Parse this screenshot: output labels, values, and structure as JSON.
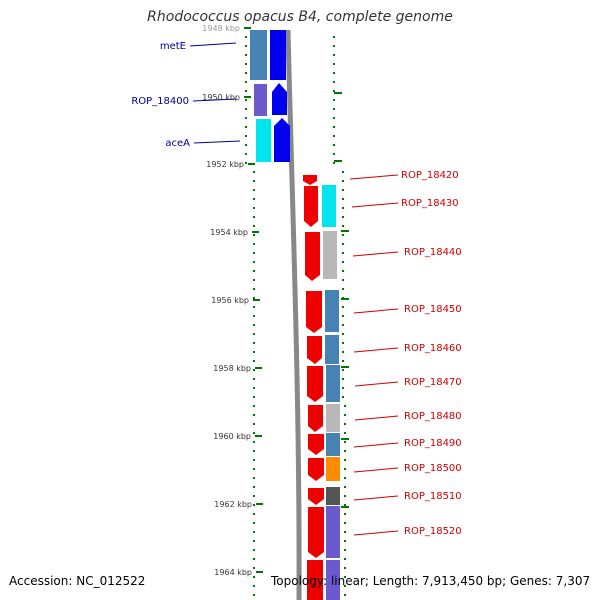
{
  "title": "Rhodococcus opacus B4, complete genome",
  "footer": {
    "accession": "Accession: NC_012522",
    "stats": "Topology: linear; Length: 7,913,450 bp; Genes: 7,307"
  },
  "ruler_labels": [
    "1948 kbp",
    "1950 kbp",
    "1952 kbp",
    "1954 kbp",
    "1956 kbp",
    "1958 kbp",
    "1960 kbp",
    "1962 kbp",
    "1964 kbp"
  ],
  "left_genes": [
    {
      "name": "metE",
      "color": "#000099"
    },
    {
      "name": "ROP_18400",
      "color": "#000099"
    },
    {
      "name": "aceA",
      "color": "#000099"
    }
  ],
  "right_genes": [
    {
      "name": "ROP_18420",
      "color": "#cc0000",
      "category_color": "#00e5ee"
    },
    {
      "name": "ROP_18430",
      "color": "#cc0000",
      "category_color": "#00e5ee"
    },
    {
      "name": "ROP_18440",
      "color": "#cc0000",
      "category_color": "#b8b8b8"
    },
    {
      "name": "ROP_18450",
      "color": "#cc0000",
      "category_color": "#4682b4"
    },
    {
      "name": "ROP_18460",
      "color": "#cc0000",
      "category_color": "#4682b4"
    },
    {
      "name": "ROP_18470",
      "color": "#cc0000",
      "category_color": "#4682b4"
    },
    {
      "name": "ROP_18480",
      "color": "#cc0000",
      "category_color": "#b8b8b8"
    },
    {
      "name": "ROP_18490",
      "color": "#cc0000",
      "category_color": "#4682b4"
    },
    {
      "name": "ROP_18500",
      "color": "#cc0000",
      "category_color": "#ff8c00"
    },
    {
      "name": "ROP_18510",
      "color": "#cc0000",
      "category_color": "#555555"
    },
    {
      "name": "ROP_18520",
      "color": "#cc0000",
      "category_color": "#6a5acd"
    }
  ],
  "colors": {
    "strand_plus": "#0000ee",
    "strand_minus": "#ee0000",
    "ruler": "#007700",
    "backbone": "#888888"
  }
}
